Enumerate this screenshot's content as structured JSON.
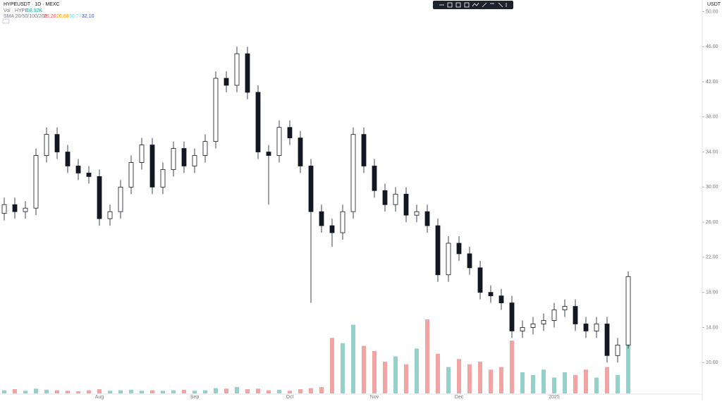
{
  "chart_data": {
    "type": "candlestick",
    "symbol": "HYPEUSDT · 1D · MEXC",
    "volume_label": "Vol · HYPE",
    "volume_value": "58.92K",
    "sma_label": "SMA 20/50/100/200",
    "sma_values": [
      "25.20",
      "26.66",
      "30.77",
      "32.10"
    ],
    "currency": "USDT",
    "up_color": "#ffffff",
    "down_color": "#131722",
    "volume_up_color": "#95d1c8",
    "volume_down_color": "#f2a3a3",
    "open": [
      27.0,
      28.0,
      27.2,
      27.6,
      33.6,
      36.0,
      34.0,
      32.4,
      31.6,
      31.2,
      26.4,
      27.2,
      30.0,
      32.8,
      34.8,
      30.0,
      32.0,
      34.4,
      32.4,
      33.6,
      35.2,
      42.4,
      41.6,
      45.2,
      40.8,
      34.0,
      33.6,
      36.8,
      35.6,
      32.4,
      27.2,
      25.6,
      24.8,
      27.2,
      36.0,
      32.4,
      29.6,
      28.0,
      29.2,
      26.8,
      27.2,
      25.6,
      20.0,
      23.6,
      22.4,
      20.8,
      18.0,
      17.6,
      16.8,
      13.6,
      14.0,
      14.4,
      14.8,
      16.0,
      16.4,
      14.4,
      13.6,
      14.4,
      10.8,
      12.0
    ],
    "high": [
      28.8,
      28.8,
      28.4,
      34.4,
      36.8,
      36.8,
      34.8,
      33.2,
      32.4,
      32.0,
      28.0,
      30.8,
      33.6,
      35.6,
      35.6,
      32.8,
      35.2,
      35.2,
      34.4,
      36.0,
      43.2,
      43.2,
      46.0,
      46.0,
      41.6,
      34.8,
      37.6,
      37.6,
      36.4,
      33.2,
      28.0,
      26.4,
      28.0,
      36.8,
      36.8,
      33.2,
      30.4,
      30.0,
      30.0,
      28.0,
      28.0,
      26.4,
      24.4,
      24.4,
      23.2,
      21.6,
      18.8,
      18.4,
      17.6,
      14.8,
      15.2,
      15.6,
      16.8,
      17.2,
      17.2,
      15.2,
      15.2,
      15.2,
      12.8,
      20.4
    ],
    "low": [
      26.2,
      26.4,
      26.4,
      26.8,
      32.8,
      33.2,
      31.6,
      30.8,
      30.4,
      25.6,
      25.6,
      26.4,
      29.2,
      32.0,
      29.2,
      29.2,
      31.2,
      31.6,
      31.6,
      32.8,
      34.4,
      40.8,
      40.8,
      40.0,
      33.2,
      28.0,
      32.8,
      34.8,
      31.6,
      16.8,
      24.8,
      23.2,
      24.0,
      26.4,
      31.6,
      28.8,
      27.2,
      27.2,
      26.0,
      26.0,
      24.8,
      19.2,
      19.2,
      21.6,
      20.0,
      17.2,
      16.8,
      16.0,
      12.8,
      12.8,
      13.2,
      13.6,
      14.0,
      15.2,
      13.6,
      12.8,
      12.8,
      10.0,
      10.0,
      11.6
    ],
    "close": [
      28.0,
      27.2,
      27.6,
      33.6,
      36.0,
      34.0,
      32.4,
      31.6,
      31.2,
      26.4,
      27.2,
      30.0,
      32.8,
      34.8,
      30.0,
      32.0,
      34.4,
      32.4,
      33.6,
      35.2,
      42.4,
      41.6,
      45.2,
      40.8,
      34.0,
      33.6,
      36.8,
      35.6,
      32.4,
      27.2,
      25.6,
      24.8,
      27.2,
      36.0,
      32.4,
      29.6,
      28.0,
      29.2,
      26.8,
      27.2,
      25.6,
      20.0,
      23.6,
      22.4,
      20.8,
      18.0,
      17.6,
      16.8,
      13.6,
      14.0,
      14.4,
      14.8,
      16.0,
      16.4,
      14.4,
      13.6,
      14.4,
      10.8,
      12.0,
      19.8
    ],
    "volume": [
      6,
      8,
      5,
      9,
      7,
      6,
      5,
      4,
      6,
      8,
      5,
      6,
      7,
      5,
      6,
      5,
      6,
      7,
      5,
      6,
      10,
      9,
      12,
      8,
      9,
      6,
      7,
      5,
      8,
      10,
      12,
      105,
      95,
      130,
      90,
      80,
      60,
      70,
      55,
      85,
      140,
      75,
      50,
      65,
      55,
      60,
      45,
      50,
      100,
      40,
      35,
      45,
      30,
      40,
      35,
      45,
      30,
      50,
      35,
      95
    ],
    "xlabels": [
      {
        "index": 9,
        "label": "Aug"
      },
      {
        "index": 18,
        "label": "Sep"
      },
      {
        "index": 27,
        "label": "Oct"
      },
      {
        "index": 35,
        "label": "Nov"
      },
      {
        "index": 43,
        "label": "Dec"
      },
      {
        "index": 52,
        "label": "2025"
      }
    ],
    "ylim": [
      6,
      51
    ],
    "vlim": [
      0,
      200
    ],
    "yticks": [
      {
        "value": 10,
        "label": "10.00"
      },
      {
        "value": 14,
        "label": "14.00"
      },
      {
        "value": 18,
        "label": "18.00"
      },
      {
        "value": 22,
        "label": "22.00"
      },
      {
        "value": 26,
        "label": "26.00"
      },
      {
        "value": 30,
        "label": "30.00"
      },
      {
        "value": 34,
        "label": "34.00"
      },
      {
        "value": 38,
        "label": "38.00"
      },
      {
        "value": 42,
        "label": "42.00"
      },
      {
        "value": 46,
        "label": "46.00"
      },
      {
        "value": 50,
        "label": "50.00"
      }
    ]
  }
}
